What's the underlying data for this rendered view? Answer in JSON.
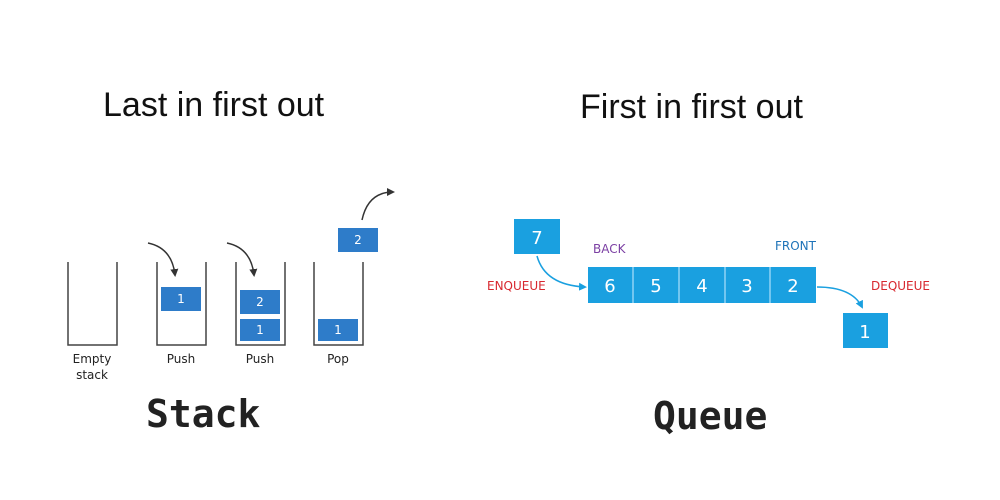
{
  "stack": {
    "heading": "Last in first out",
    "title": "Stack",
    "steps": [
      {
        "label_line1": "Empty",
        "label_line2": "stack"
      },
      {
        "label_line1": "Push",
        "items": [
          "1"
        ]
      },
      {
        "label_line1": "Push",
        "items": [
          "1",
          "2"
        ]
      },
      {
        "label_line1": "Pop",
        "items": [
          "1"
        ],
        "popped": "2"
      }
    ]
  },
  "queue": {
    "heading": "First in first out",
    "title": "Queue",
    "incoming": "7",
    "cells": [
      "6",
      "5",
      "4",
      "3",
      "2"
    ],
    "outgoing": "1",
    "back_label": "BACK",
    "front_label": "FRONT",
    "enqueue_label": "ENQUEUE",
    "dequeue_label": "DEQUEUE"
  },
  "colors": {
    "stack_block": "#2e7cc9",
    "queue_block": "#1aa0e0",
    "queue_divider": "#8fd3f5",
    "container_line": "#444444",
    "arrow": "#333333",
    "queue_arrow": "#1aa0e0",
    "back_label": "#7b3fa3",
    "front_label": "#1e73b8",
    "action_label": "#d8282f"
  }
}
